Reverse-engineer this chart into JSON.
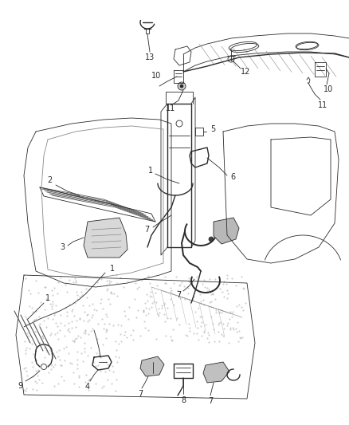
{
  "bg_color": "#ffffff",
  "line_color": "#2a2a2a",
  "fig_width": 4.38,
  "fig_height": 5.33,
  "dpi": 100,
  "gray_fill": "#c8c8c8",
  "light_gray": "#e0e0e0",
  "dark_gray": "#606060",
  "stipple_color": "#b0b0b0",
  "hatch_color": "#888888"
}
